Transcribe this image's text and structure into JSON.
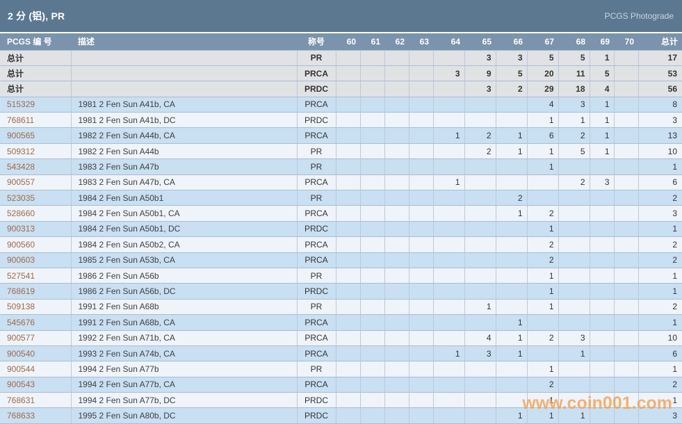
{
  "title_bar": {
    "title": "2 分 (铝), PR",
    "brand": "PCGS Photograde"
  },
  "table": {
    "headers": {
      "pcgs_number": "PCGS 编 号",
      "description": "描述",
      "designation": "称号",
      "grades": [
        "60",
        "61",
        "62",
        "63",
        "64",
        "65",
        "66",
        "67",
        "68",
        "69",
        "70"
      ],
      "total": "总计"
    },
    "summary_label": "总计",
    "summary_rows": [
      {
        "designation": "PR",
        "grades": [
          "",
          "",
          "",
          "",
          "",
          "3",
          "3",
          "5",
          "5",
          "1",
          ""
        ],
        "total": "17"
      },
      {
        "designation": "PRCA",
        "grades": [
          "",
          "",
          "",
          "",
          "3",
          "9",
          "5",
          "20",
          "11",
          "5",
          ""
        ],
        "total": "53"
      },
      {
        "designation": "PRDC",
        "grades": [
          "",
          "",
          "",
          "",
          "",
          "3",
          "2",
          "29",
          "18",
          "4",
          ""
        ],
        "total": "56"
      }
    ],
    "rows": [
      {
        "pcgs": "515329",
        "desc": "1981 2 Fen Sun A41b, CA",
        "designation": "PRCA",
        "grades": [
          "",
          "",
          "",
          "",
          "",
          "",
          "",
          "4",
          "3",
          "1",
          ""
        ],
        "total": "8"
      },
      {
        "pcgs": "768611",
        "desc": "1981 2 Fen Sun A41b, DC",
        "designation": "PRDC",
        "grades": [
          "",
          "",
          "",
          "",
          "",
          "",
          "",
          "1",
          "1",
          "1",
          ""
        ],
        "total": "3"
      },
      {
        "pcgs": "900565",
        "desc": "1982 2 Fen Sun A44b, CA",
        "designation": "PRCA",
        "grades": [
          "",
          "",
          "",
          "",
          "1",
          "2",
          "1",
          "6",
          "2",
          "1",
          ""
        ],
        "total": "13"
      },
      {
        "pcgs": "509312",
        "desc": "1982 2 Fen Sun A44b",
        "designation": "PR",
        "grades": [
          "",
          "",
          "",
          "",
          "",
          "2",
          "1",
          "1",
          "5",
          "1",
          ""
        ],
        "total": "10"
      },
      {
        "pcgs": "543428",
        "desc": "1983 2 Fen Sun A47b",
        "designation": "PR",
        "grades": [
          "",
          "",
          "",
          "",
          "",
          "",
          "",
          "1",
          "",
          "",
          ""
        ],
        "total": "1"
      },
      {
        "pcgs": "900557",
        "desc": "1983 2 Fen Sun A47b, CA",
        "designation": "PRCA",
        "grades": [
          "",
          "",
          "",
          "",
          "1",
          "",
          "",
          "",
          "2",
          "3",
          ""
        ],
        "total": "6"
      },
      {
        "pcgs": "523035",
        "desc": "1984 2 Fen Sun A50b1",
        "designation": "PR",
        "grades": [
          "",
          "",
          "",
          "",
          "",
          "",
          "2",
          "",
          "",
          "",
          ""
        ],
        "total": "2"
      },
      {
        "pcgs": "528660",
        "desc": "1984 2 Fen Sun A50b1, CA",
        "designation": "PRCA",
        "grades": [
          "",
          "",
          "",
          "",
          "",
          "",
          "1",
          "2",
          "",
          "",
          ""
        ],
        "total": "3"
      },
      {
        "pcgs": "900313",
        "desc": "1984 2 Fen Sun A50b1, DC",
        "designation": "PRDC",
        "grades": [
          "",
          "",
          "",
          "",
          "",
          "",
          "",
          "1",
          "",
          "",
          ""
        ],
        "total": "1"
      },
      {
        "pcgs": "900560",
        "desc": "1984 2 Fen Sun A50b2, CA",
        "designation": "PRCA",
        "grades": [
          "",
          "",
          "",
          "",
          "",
          "",
          "",
          "2",
          "",
          "",
          ""
        ],
        "total": "2"
      },
      {
        "pcgs": "900603",
        "desc": "1985 2 Fen Sun A53b, CA",
        "designation": "PRCA",
        "grades": [
          "",
          "",
          "",
          "",
          "",
          "",
          "",
          "2",
          "",
          "",
          ""
        ],
        "total": "2"
      },
      {
        "pcgs": "527541",
        "desc": "1986 2 Fen Sun A56b",
        "designation": "PR",
        "grades": [
          "",
          "",
          "",
          "",
          "",
          "",
          "",
          "1",
          "",
          "",
          ""
        ],
        "total": "1"
      },
      {
        "pcgs": "768619",
        "desc": "1986 2 Fen Sun A56b, DC",
        "designation": "PRDC",
        "grades": [
          "",
          "",
          "",
          "",
          "",
          "",
          "",
          "1",
          "",
          "",
          ""
        ],
        "total": "1"
      },
      {
        "pcgs": "509138",
        "desc": "1991 2 Fen Sun A68b",
        "designation": "PR",
        "grades": [
          "",
          "",
          "",
          "",
          "",
          "1",
          "",
          "1",
          "",
          "",
          ""
        ],
        "total": "2"
      },
      {
        "pcgs": "545676",
        "desc": "1991 2 Fen Sun A68b, CA",
        "designation": "PRCA",
        "grades": [
          "",
          "",
          "",
          "",
          "",
          "",
          "1",
          "",
          "",
          "",
          ""
        ],
        "total": "1"
      },
      {
        "pcgs": "900577",
        "desc": "1992 2 Fen Sun A71b, CA",
        "designation": "PRCA",
        "grades": [
          "",
          "",
          "",
          "",
          "",
          "4",
          "1",
          "2",
          "3",
          "",
          ""
        ],
        "total": "10"
      },
      {
        "pcgs": "900540",
        "desc": "1993 2 Fen Sun A74b, CA",
        "designation": "PRCA",
        "grades": [
          "",
          "",
          "",
          "",
          "1",
          "3",
          "1",
          "",
          "1",
          "",
          ""
        ],
        "total": "6"
      },
      {
        "pcgs": "900544",
        "desc": "1994 2 Fen Sun A77b",
        "designation": "PR",
        "grades": [
          "",
          "",
          "",
          "",
          "",
          "",
          "",
          "1",
          "",
          "",
          ""
        ],
        "total": "1"
      },
      {
        "pcgs": "900543",
        "desc": "1994 2 Fen Sun A77b, CA",
        "designation": "PRCA",
        "grades": [
          "",
          "",
          "",
          "",
          "",
          "",
          "",
          "2",
          "",
          "",
          ""
        ],
        "total": "2"
      },
      {
        "pcgs": "768631",
        "desc": "1994 2 Fen Sun A77b, DC",
        "designation": "PRDC",
        "grades": [
          "",
          "",
          "",
          "",
          "",
          "",
          "",
          "1",
          "",
          "",
          ""
        ],
        "total": "1"
      },
      {
        "pcgs": "768633",
        "desc": "1995 2 Fen Sun A80b, DC",
        "designation": "PRDC",
        "grades": [
          "",
          "",
          "",
          "",
          "",
          "",
          "1",
          "1",
          "1",
          "",
          ""
        ],
        "total": "3"
      }
    ]
  },
  "watermark": "www.coin001.com",
  "colors": {
    "title_bar_bg": "#5c7890",
    "header_bg": "#7b93ac",
    "summary_row_bg": "#e1e2e4",
    "row_blue_bg": "#c9dff2",
    "row_light_bg": "#eff4fa",
    "row_border": "#a9bdd3",
    "pcgs_link_text": "#a0694a",
    "watermark_orange": "#f3a04f"
  }
}
